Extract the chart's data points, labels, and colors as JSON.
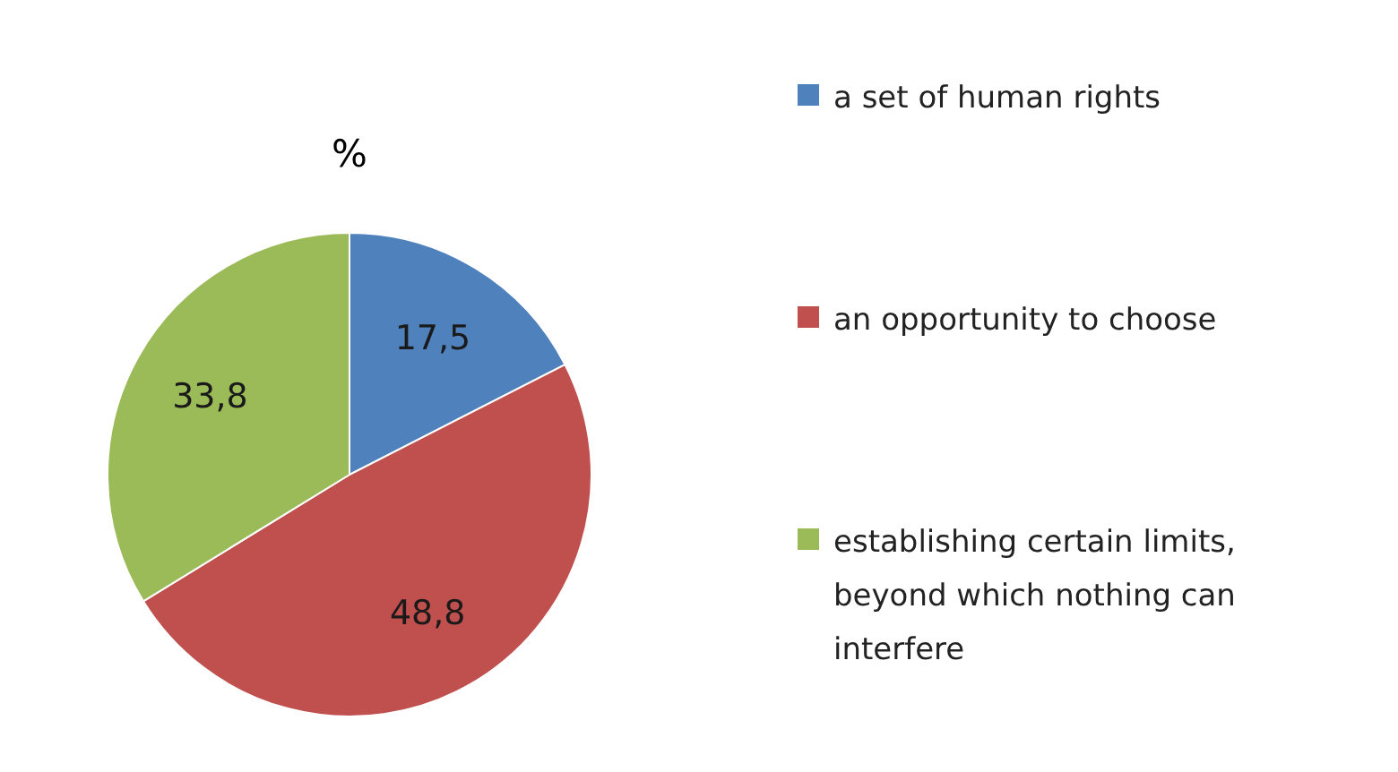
{
  "chart_data": {
    "type": "pie",
    "title": "%",
    "categories": [
      "a set of human rights",
      "an opportunity to choose",
      "establishing certain limits, beyond which nothing can interfere"
    ],
    "values": [
      17.5,
      48.8,
      33.8
    ],
    "colors": [
      "#4f81bd",
      "#c0504d",
      "#9bbb59"
    ],
    "value_labels": [
      "17,5",
      "48,8",
      "33,8"
    ],
    "legend": "right"
  }
}
